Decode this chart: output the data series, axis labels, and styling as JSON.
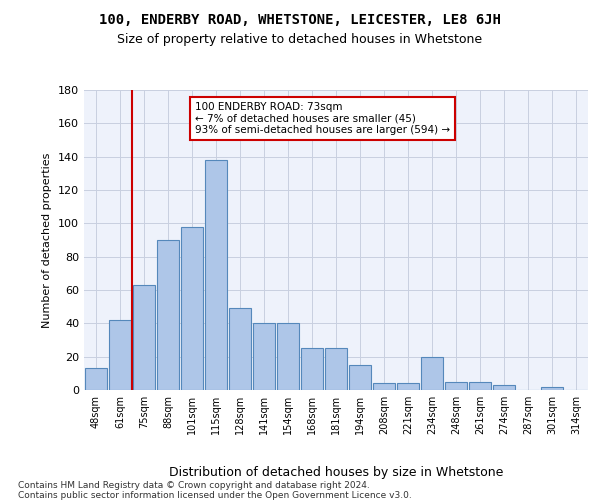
{
  "title1": "100, ENDERBY ROAD, WHETSTONE, LEICESTER, LE8 6JH",
  "title2": "Size of property relative to detached houses in Whetstone",
  "xlabel": "Distribution of detached houses by size in Whetstone",
  "ylabel": "Number of detached properties",
  "categories": [
    "48sqm",
    "61sqm",
    "75sqm",
    "88sqm",
    "101sqm",
    "115sqm",
    "128sqm",
    "141sqm",
    "154sqm",
    "168sqm",
    "181sqm",
    "194sqm",
    "208sqm",
    "221sqm",
    "234sqm",
    "248sqm",
    "261sqm",
    "274sqm",
    "287sqm",
    "301sqm",
    "314sqm"
  ],
  "values": [
    13,
    42,
    63,
    90,
    98,
    138,
    49,
    40,
    40,
    25,
    25,
    15,
    4,
    4,
    20,
    5,
    5,
    3,
    0,
    2,
    0
  ],
  "bar_color": "#aec6e8",
  "bar_edge_color": "#5588bb",
  "vline_color": "#cc0000",
  "annotation_text": "100 ENDERBY ROAD: 73sqm\n← 7% of detached houses are smaller (45)\n93% of semi-detached houses are larger (594) →",
  "annotation_box_color": "#ffffff",
  "annotation_box_edge": "#cc0000",
  "footer1": "Contains HM Land Registry data © Crown copyright and database right 2024.",
  "footer2": "Contains public sector information licensed under the Open Government Licence v3.0.",
  "ylim": [
    0,
    180
  ],
  "yticks": [
    0,
    20,
    40,
    60,
    80,
    100,
    120,
    140,
    160,
    180
  ],
  "bg_color": "#eef2fb",
  "grid_color": "#c8cfe0"
}
